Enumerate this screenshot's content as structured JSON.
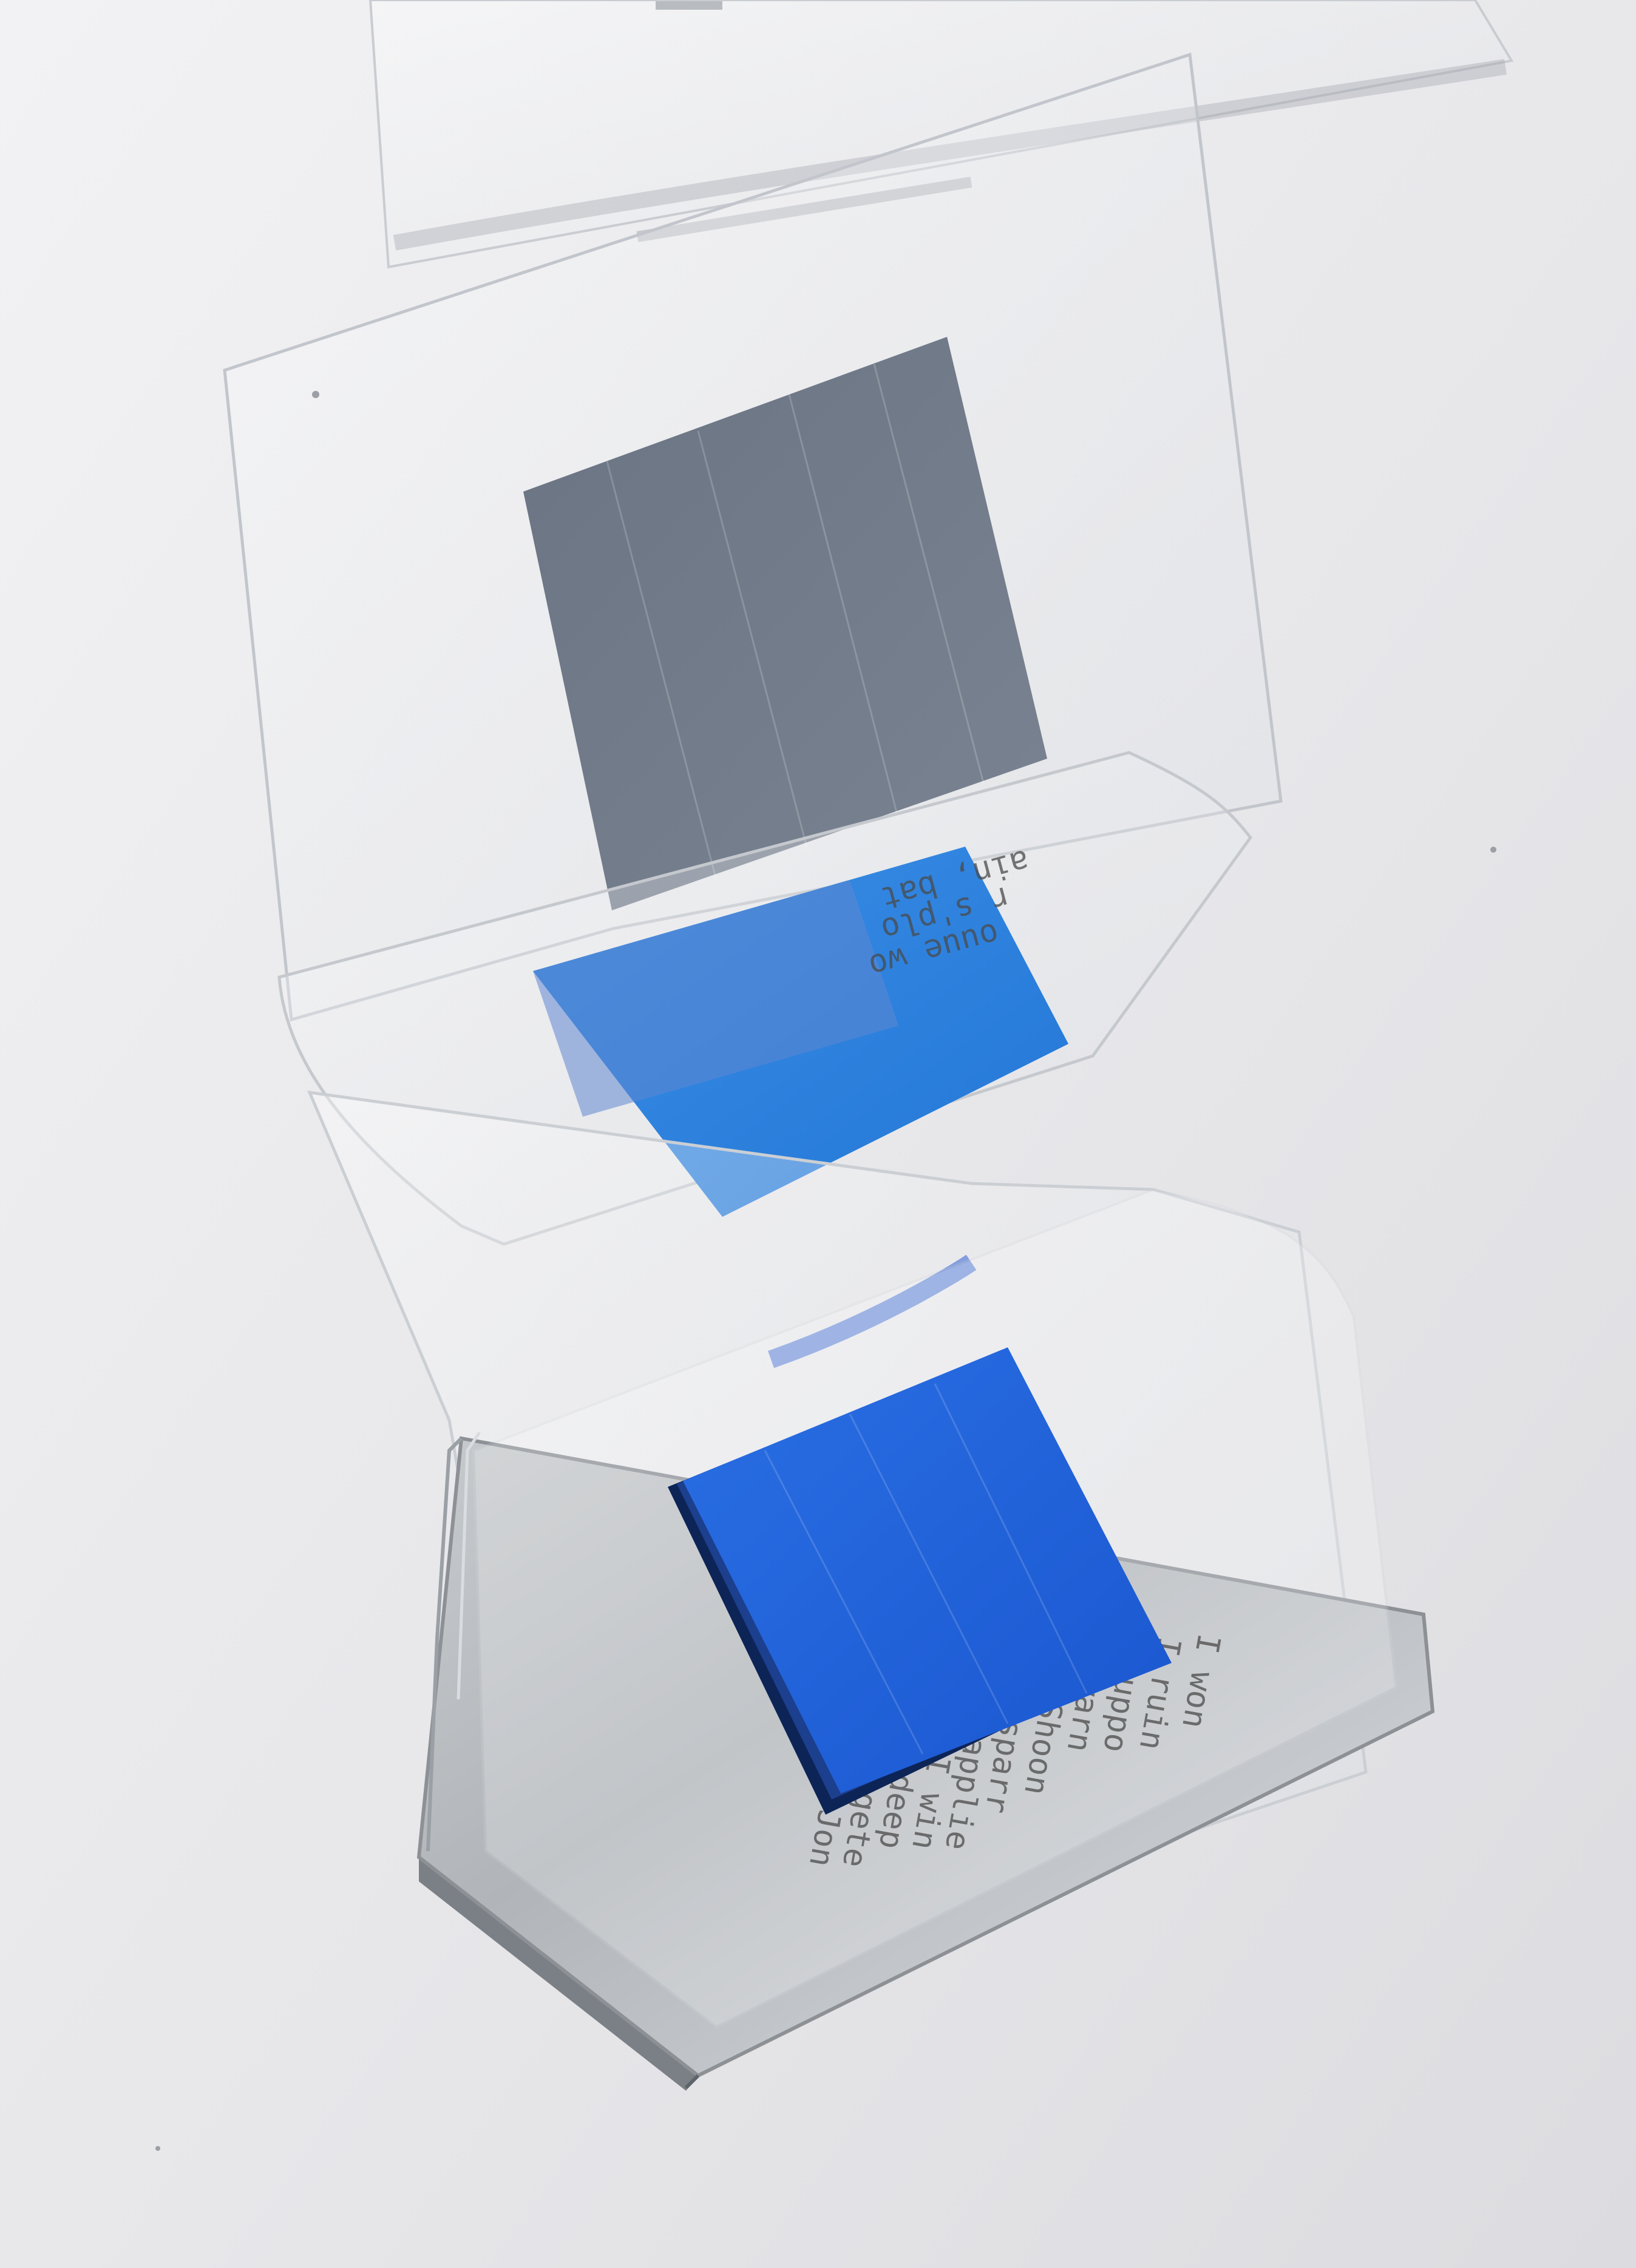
{
  "photo": {
    "subject": "transparent-acetate-sculpture",
    "colors": {
      "wall": "#e8e8eb",
      "wall_light": "#f1f1f3",
      "gray_square": "#6f7987",
      "blue_light": "#2f86e0",
      "blue_bright": "#1e64dc",
      "blue_edge": "#0b2f7a",
      "metal_base": "#b8bcc0",
      "metal_shadow": "#8d9196",
      "acetate": "#f4f6f8"
    }
  },
  "base_text": {
    "lines": [
      "I won",
      "I ruin",
      "suppo",
      "warn",
      "Shoon",
      "sparr",
      "applie",
      "I win",
      "deep",
      "gete",
      "Jon"
    ]
  },
  "mid_text": {
    "lines": [
      "ain, bat",
      "r s'plo",
      "ouue wo"
    ]
  }
}
